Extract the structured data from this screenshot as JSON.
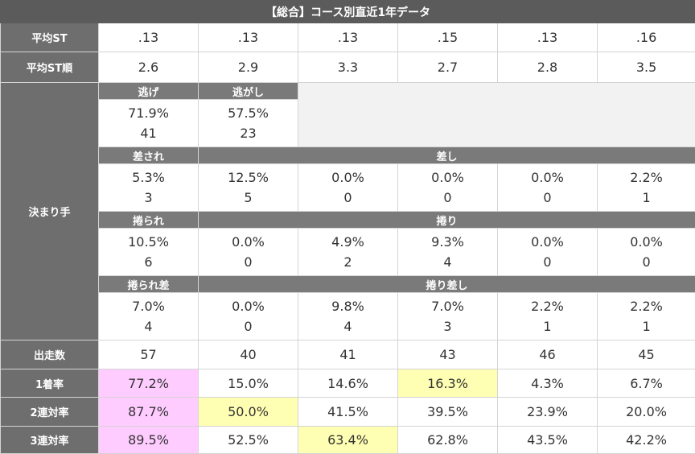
{
  "title": "【総合】コース別直近1年データ",
  "avg_st": {
    "label": "平均ST",
    "values": [
      ".13",
      ".13",
      ".13",
      ".15",
      ".13",
      ".16"
    ]
  },
  "avg_st_rank": {
    "label": "平均ST順",
    "values": [
      "2.6",
      "2.9",
      "3.3",
      "2.7",
      "2.8",
      "3.5"
    ]
  },
  "kimarite": {
    "label": "決まり手",
    "nige": {
      "label": "逃げ",
      "rate": "71.9%",
      "count": "41"
    },
    "nigashi": {
      "label": "逃がし",
      "rate": "57.5%",
      "count": "23"
    },
    "sasare": {
      "label": "差され",
      "rate": "5.3%",
      "count": "3"
    },
    "sashi": {
      "label": "差し",
      "rates": [
        "12.5%",
        "0.0%",
        "0.0%",
        "0.0%",
        "2.2%"
      ],
      "counts": [
        "5",
        "0",
        "0",
        "0",
        "1"
      ]
    },
    "makurare": {
      "label": "捲られ",
      "rate": "10.5%",
      "count": "6"
    },
    "makuri": {
      "label": "捲り",
      "rates": [
        "0.0%",
        "4.9%",
        "9.3%",
        "0.0%",
        "0.0%"
      ],
      "counts": [
        "0",
        "2",
        "4",
        "0",
        "0"
      ]
    },
    "makurare_sashi": {
      "label": "捲られ差",
      "rate": "7.0%",
      "count": "4"
    },
    "makuri_sashi": {
      "label": "捲り差し",
      "rates": [
        "0.0%",
        "9.8%",
        "7.0%",
        "2.2%",
        "2.2%"
      ],
      "counts": [
        "0",
        "4",
        "3",
        "1",
        "1"
      ]
    }
  },
  "starts": {
    "label": "出走数",
    "values": [
      "57",
      "40",
      "41",
      "43",
      "46",
      "45"
    ]
  },
  "win_rate": {
    "label": "1着率",
    "values": [
      "77.2%",
      "15.0%",
      "14.6%",
      "16.3%",
      "4.3%",
      "6.7%"
    ]
  },
  "quinella_rate": {
    "label": "2連対率",
    "values": [
      "87.7%",
      "50.0%",
      "41.5%",
      "39.5%",
      "23.9%",
      "20.0%"
    ]
  },
  "trio_rate": {
    "label": "3連対率",
    "values": [
      "89.5%",
      "52.5%",
      "63.4%",
      "62.8%",
      "43.5%",
      "42.2%"
    ]
  },
  "colors": {
    "header_bg": "#5b5b5b",
    "row_head_bg": "#6e6e6e",
    "highlight_pink": "#ffccff",
    "highlight_yellow": "#ffffb3"
  }
}
